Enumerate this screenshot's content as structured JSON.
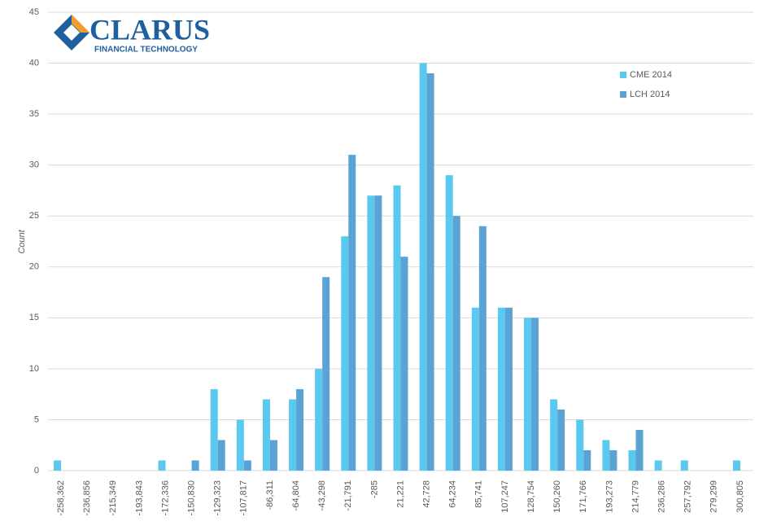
{
  "chart_data": {
    "type": "bar",
    "y_label": "Count",
    "categories": [
      "-258,362",
      "-236,856",
      "-215,349",
      "-193,843",
      "-172,336",
      "-150,830",
      "-129,323",
      "-107,817",
      "-86,311",
      "-64,804",
      "-43,298",
      "-21,791",
      "-285",
      "21,221",
      "42,728",
      "64,234",
      "85,741",
      "107,247",
      "128,754",
      "150,260",
      "171,766",
      "193,273",
      "214,779",
      "236,286",
      "257,792",
      "279,299",
      "300,805"
    ],
    "series": [
      {
        "name": "CME 2014",
        "color": "#5bc8f0",
        "values": [
          1,
          0,
          0,
          0,
          1,
          0,
          8,
          5,
          7,
          7,
          10,
          23,
          27,
          28,
          40,
          29,
          16,
          16,
          15,
          7,
          5,
          3,
          2,
          1,
          1,
          0,
          1
        ]
      },
      {
        "name": "LCH 2014",
        "color": "#5ba3d4",
        "values": [
          0,
          0,
          0,
          0,
          0,
          1,
          3,
          1,
          3,
          8,
          19,
          31,
          27,
          21,
          39,
          25,
          24,
          16,
          15,
          6,
          2,
          2,
          4,
          0,
          0,
          0,
          0
        ]
      }
    ],
    "ylim": [
      0,
      45
    ],
    "yticks": [
      0,
      5,
      10,
      15,
      20,
      25,
      30,
      35,
      40,
      45
    ],
    "grid": true,
    "legend": "top-right"
  },
  "logo": {
    "name": "CLARUS",
    "tagline": "FINANCIAL TECHNOLOGY"
  }
}
